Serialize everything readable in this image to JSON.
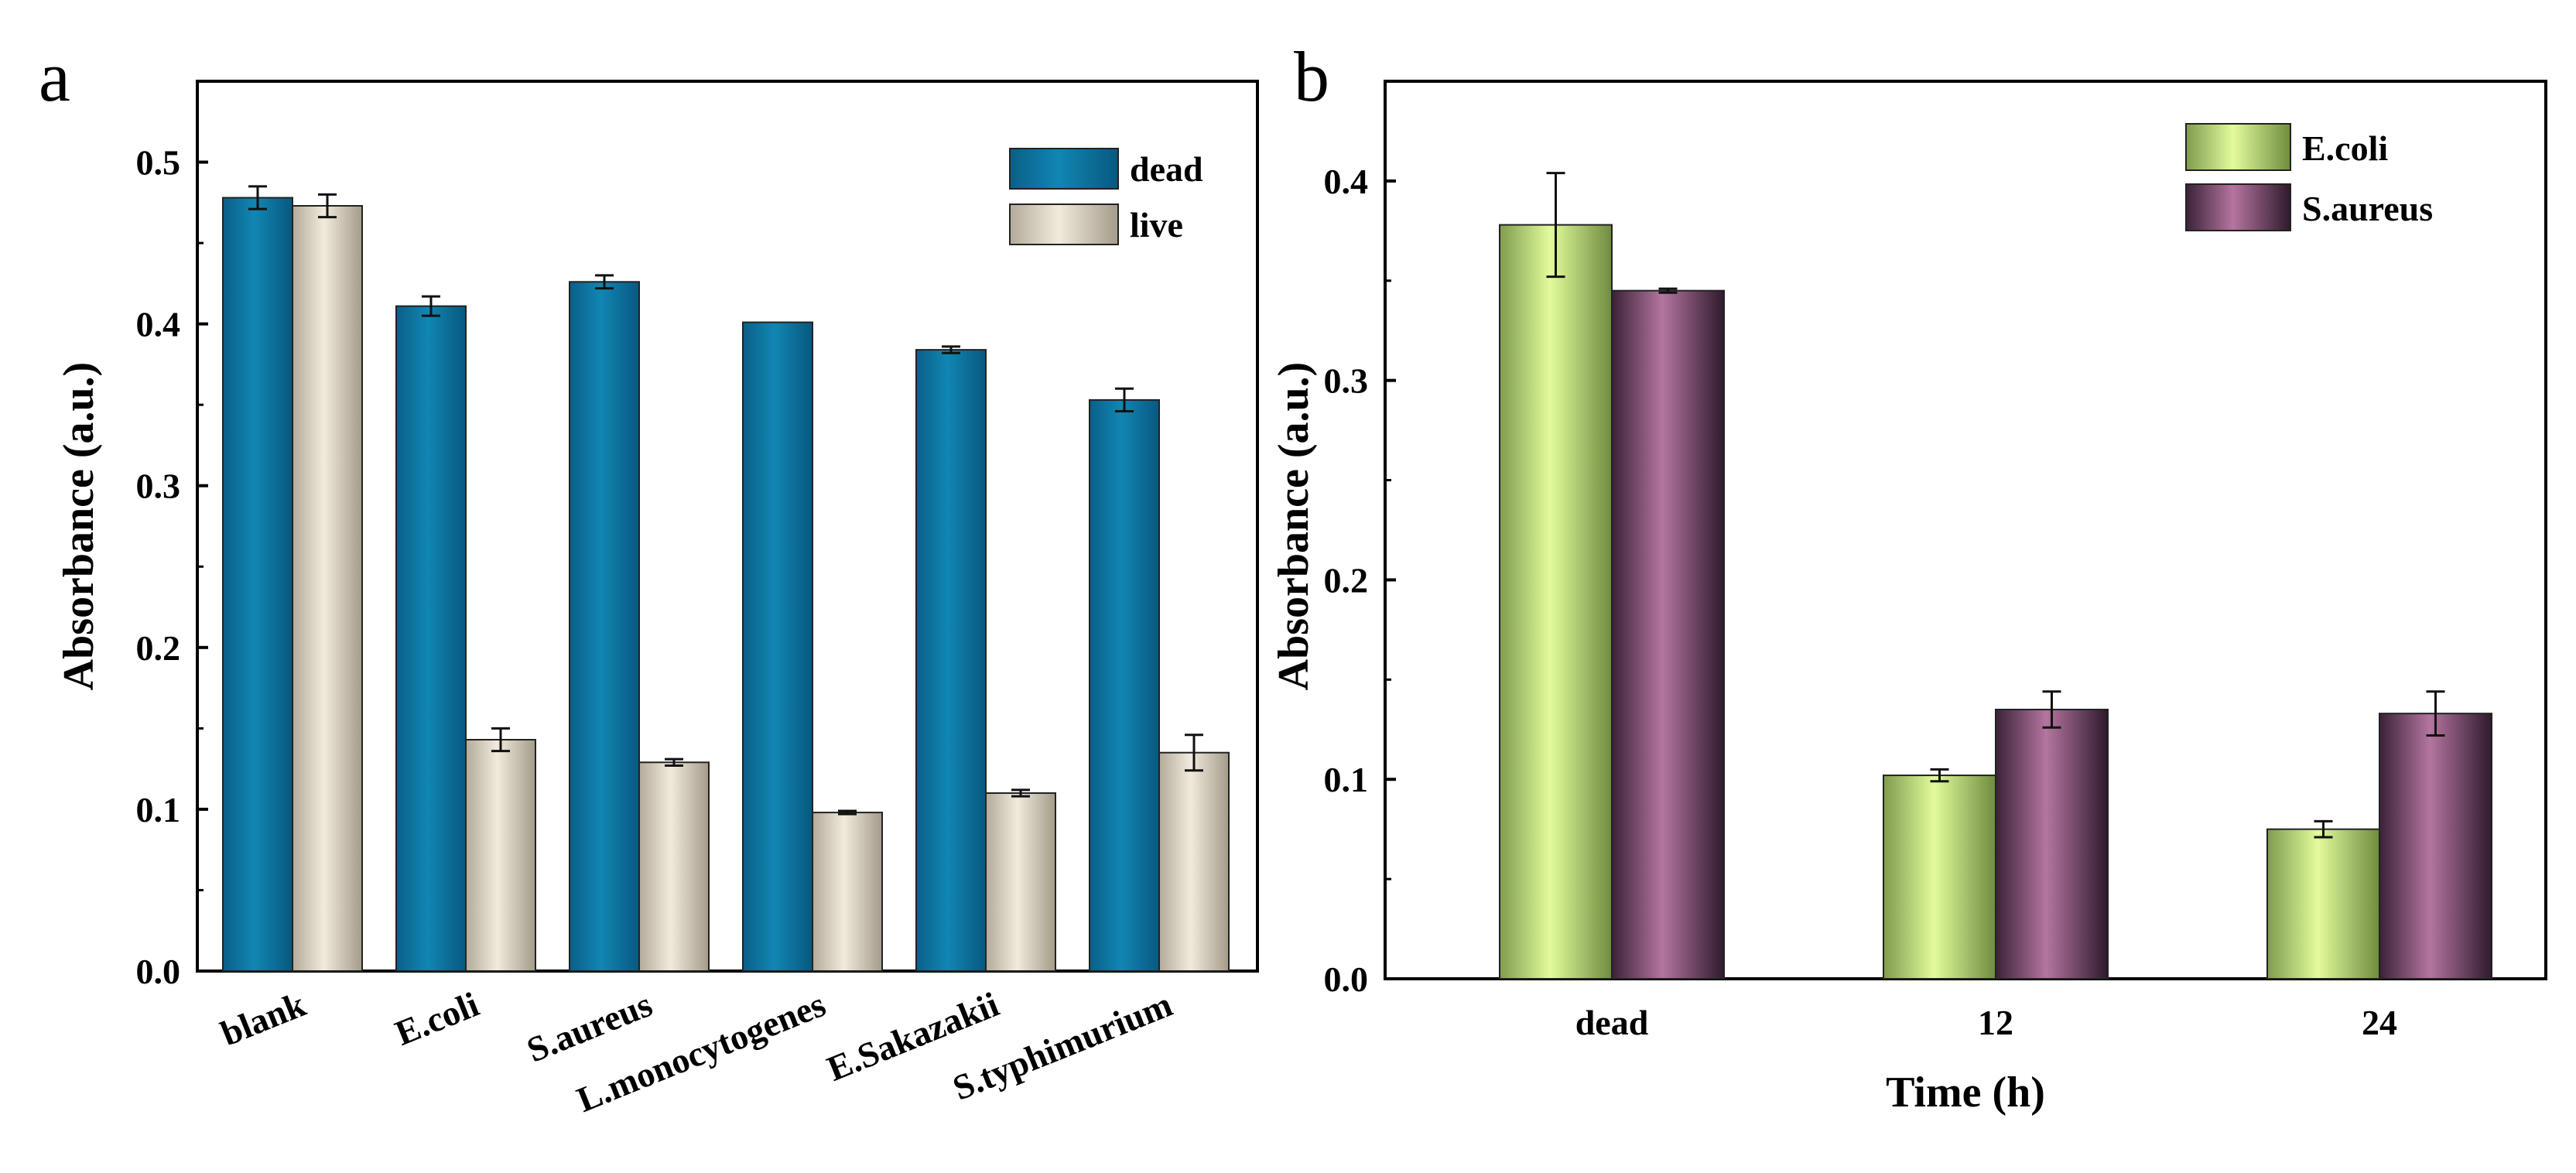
{
  "panels": [
    {
      "letter": "a"
    },
    {
      "letter": "b"
    }
  ],
  "chart_data": [
    {
      "type": "bar",
      "xlabel": "",
      "ylabel": "Absorbance (a.u.)",
      "ylim": [
        0,
        0.55
      ],
      "yticks": [
        "0.0",
        "0.1",
        "0.2",
        "0.3",
        "0.4",
        "0.5"
      ],
      "categories": [
        "blank",
        "E.coli",
        "S.aureus",
        "L.monocytogenes",
        "E.Sakazakii",
        "S.typhimurium"
      ],
      "legend_position": "top-right",
      "grid": false,
      "series": [
        {
          "name": "dead",
          "color": "#0a6f9a",
          "values": [
            0.478,
            0.411,
            0.426,
            0.401,
            0.384,
            0.353
          ],
          "errors": [
            0.007,
            0.006,
            0.004,
            0.0,
            0.002,
            0.007
          ]
        },
        {
          "name": "live",
          "color": "#d9d1c1",
          "values": [
            0.473,
            0.143,
            0.129,
            0.098,
            0.11,
            0.135
          ],
          "errors": [
            0.007,
            0.007,
            0.002,
            0.001,
            0.002,
            0.011
          ]
        }
      ]
    },
    {
      "type": "bar",
      "xlabel": "Time (h)",
      "ylabel": "Absorbance (a.u.)",
      "ylim": [
        0,
        0.45
      ],
      "yticks": [
        "0.0",
        "0.1",
        "0.2",
        "0.3",
        "0.4"
      ],
      "categories": [
        "dead",
        "12",
        "24"
      ],
      "legend_position": "top-right",
      "grid": false,
      "series": [
        {
          "name": "E.coli",
          "color": "#c8ec8a",
          "values": [
            0.378,
            0.102,
            0.075
          ],
          "errors": [
            0.026,
            0.003,
            0.004
          ]
        },
        {
          "name": "S.aureus",
          "color": "#9b5a86",
          "values": [
            0.345,
            0.135,
            0.133
          ],
          "errors": [
            0.001,
            0.009,
            0.011
          ]
        }
      ]
    }
  ]
}
